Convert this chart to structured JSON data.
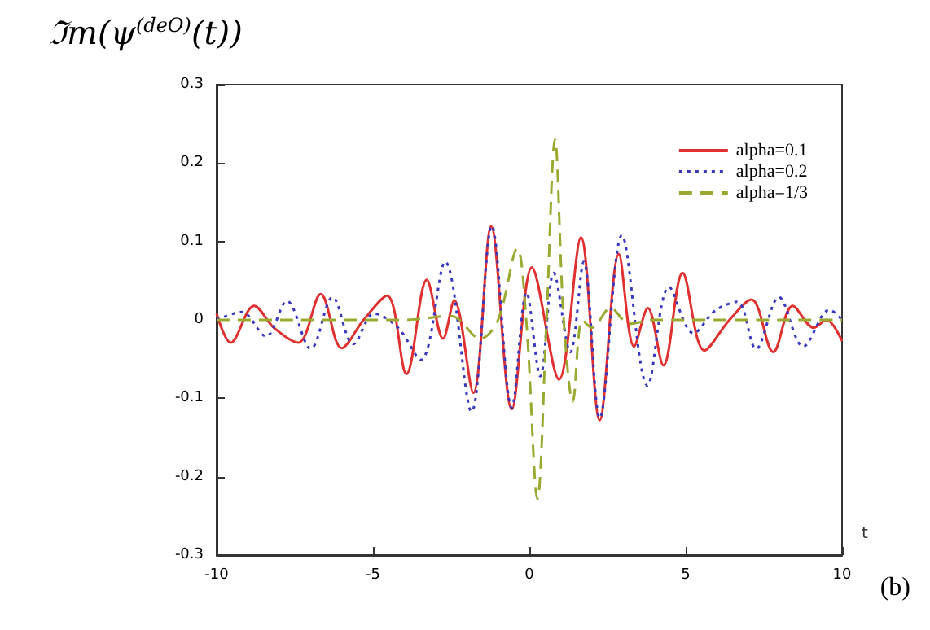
{
  "chart_data": {
    "type": "line",
    "title": "ℑm(ψ$^{(deO)}$(t))",
    "xlabel": "t",
    "annotations": [
      "(b)"
    ],
    "xlim": [
      -10,
      10
    ],
    "xticks": [
      -10,
      -5,
      0,
      5,
      10
    ],
    "ylim": [
      -0.3,
      0.3
    ],
    "yticks": [
      -0.3,
      -0.2,
      -0.1,
      0,
      0.1,
      0.2,
      0.3
    ],
    "grid": false,
    "legend": "top right",
    "marker": "none",
    "series": [
      {
        "name": "alpha=0.1",
        "color": "#e03030",
        "line_style": "solid",
        "x": [
          -10,
          -9.55,
          -8.8,
          -8.17,
          -7.39,
          -6.67,
          -6.0,
          -5.3,
          -4.55,
          -3.93,
          -3.28,
          -2.76,
          -2.4,
          -1.79,
          -1.22,
          -0.56,
          0.08,
          0.95,
          1.65,
          2.25,
          2.86,
          3.35,
          3.79,
          4.29,
          4.9,
          5.6,
          6.4,
          7.1,
          7.8,
          8.42,
          9.1,
          9.5,
          10
        ],
        "values": [
          0.008,
          -0.029,
          0.018,
          -0.01,
          -0.029,
          0.033,
          -0.036,
          0.0,
          0.031,
          -0.069,
          0.051,
          -0.024,
          0.025,
          -0.093,
          0.119,
          -0.114,
          0.067,
          -0.076,
          0.105,
          -0.128,
          0.084,
          -0.034,
          0.015,
          -0.058,
          0.06,
          -0.039,
          0.0,
          0.026,
          -0.041,
          0.018,
          -0.01,
          0.0,
          -0.027
        ]
      },
      {
        "name": "alpha=0.2",
        "color": "#3838c0",
        "line_style": "dotted",
        "x": [
          -10,
          -9.2,
          -8.42,
          -7.75,
          -6.99,
          -6.29,
          -5.63,
          -4.96,
          -4.2,
          -3.47,
          -2.69,
          -1.85,
          -1.2,
          -0.56,
          -0.09,
          0.35,
          0.78,
          1.31,
          1.74,
          2.25,
          2.96,
          3.78,
          4.47,
          5.25,
          5.95,
          6.64,
          7.25,
          7.98,
          8.76,
          9.6,
          10
        ],
        "values": [
          0.0,
          0.01,
          -0.021,
          0.024,
          -0.037,
          0.029,
          -0.031,
          0.008,
          -0.01,
          -0.051,
          0.074,
          -0.117,
          0.12,
          -0.112,
          0.035,
          -0.072,
          0.06,
          -0.041,
          0.074,
          -0.125,
          0.108,
          -0.084,
          0.042,
          -0.017,
          0.012,
          0.023,
          -0.037,
          0.029,
          -0.034,
          0.013,
          0.0
        ]
      },
      {
        "name": "alpha=1/3",
        "color": "#9aaa30",
        "line_style": "dashed",
        "x": [
          -10,
          -4,
          -2.5,
          -1.57,
          -1.0,
          -0.39,
          -0.1,
          0.26,
          0.55,
          0.82,
          1.1,
          1.39,
          1.7,
          2.0,
          2.6,
          3.2,
          4,
          10
        ],
        "values": [
          0.0,
          0.0,
          0.005,
          -0.024,
          0.0,
          0.091,
          0.0,
          -0.228,
          0.0,
          0.23,
          0.0,
          -0.104,
          0.0,
          -0.01,
          0.015,
          -0.005,
          0.0,
          0.0
        ]
      }
    ]
  }
}
